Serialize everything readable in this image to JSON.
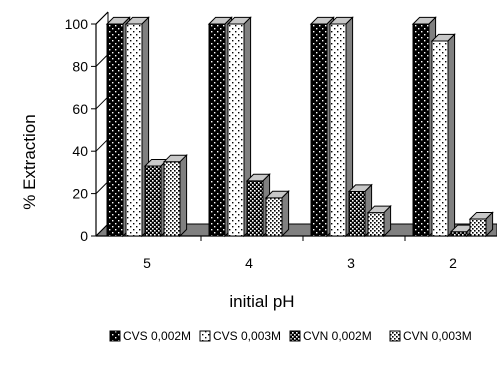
{
  "chart_data": {
    "type": "bar",
    "title": "",
    "xlabel": "initial pH",
    "ylabel": "% Extraction",
    "ylim": [
      0,
      100
    ],
    "yticks": [
      0,
      20,
      40,
      60,
      80,
      100
    ],
    "categories": [
      "5",
      "4",
      "3",
      "2"
    ],
    "grid": false,
    "legend_position": "bottom",
    "series": [
      {
        "name": "CVS 0,002M",
        "pattern": "black-white-dots",
        "values": [
          100,
          100,
          100,
          100
        ]
      },
      {
        "name": "CVS 0,003M",
        "pattern": "white-black-dots",
        "values": [
          100,
          100,
          100,
          92
        ]
      },
      {
        "name": "CVN 0,002M",
        "pattern": "black-white-checker",
        "values": [
          33,
          26,
          21,
          2
        ]
      },
      {
        "name": "CVN 0,003M",
        "pattern": "white-black-checker",
        "values": [
          35,
          18,
          11,
          8
        ]
      }
    ],
    "colors": {
      "floor": "#808080",
      "bar_side": "#808080",
      "bar_top": "#c8c8c8",
      "axis": "#000000"
    }
  }
}
